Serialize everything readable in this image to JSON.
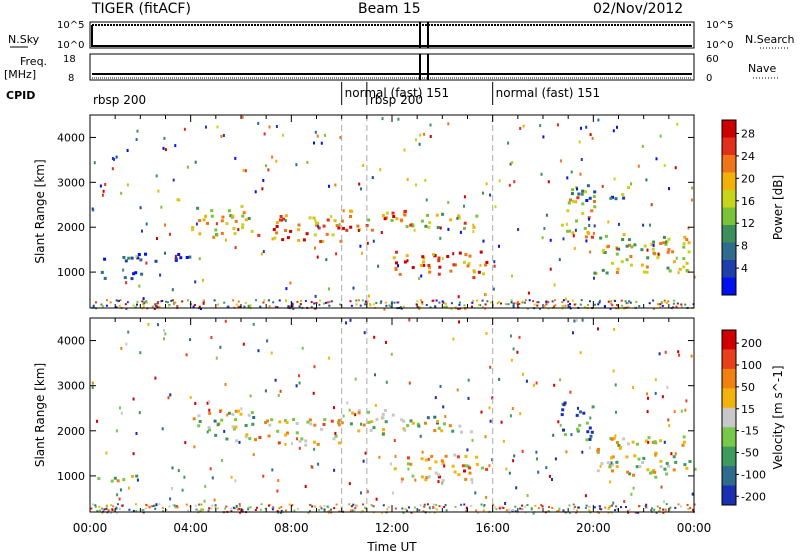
{
  "header": {
    "radar": "TIGER (fitACF)",
    "beam": "Beam 15",
    "date": "02/Nov/2012"
  },
  "aux": {
    "nsky_label": "N.Sky",
    "nsearch_label": "N.Search",
    "freq_label": "Freq.",
    "freq_unit": "[MHz]",
    "nave_label": "Nave",
    "cpid_label": "CPID",
    "noise_ticks_left": [
      "10^5",
      "10^0"
    ],
    "noise_ticks_right": [
      "10^5",
      "10^0"
    ],
    "freq_ticks": [
      "18",
      "8"
    ],
    "nave_ticks": [
      "60",
      "0"
    ],
    "cpid_segments": [
      {
        "label": "rbsp 200",
        "start_hour": 0.0
      },
      {
        "label": "normal (fast) 151",
        "start_hour": 10.0
      },
      {
        "label": "rbsp 200",
        "start_hour": 11.0
      },
      {
        "label": "normal (fast) 151",
        "start_hour": 16.0
      }
    ]
  },
  "chart_data": [
    {
      "type": "heatmap",
      "name": "power",
      "ylabel": "Slant Range [km]",
      "yticks": [
        1000,
        2000,
        3000,
        4000
      ],
      "ylim": [
        200,
        4500
      ],
      "xlim": [
        0,
        24
      ],
      "colorbar_label": "Power [dB]",
      "colorbar_ticks": [
        "4",
        "8",
        "12",
        "16",
        "20",
        "24",
        "28"
      ],
      "colorbar_colors": [
        "#0011ee",
        "#1d3faa",
        "#2e6b8c",
        "#3c8f5a",
        "#79c23a",
        "#c7d41c",
        "#f2b00c",
        "#f07418",
        "#e0301c",
        "#cc0000"
      ],
      "echo_bands": [
        {
          "t0": 0.1,
          "t1": 2.0,
          "r0": 850,
          "r1": 1050,
          "level": 0.15
        },
        {
          "t0": 0.5,
          "t1": 4.0,
          "r0": 1250,
          "r1": 1500,
          "level": 0.1
        },
        {
          "t0": 4.0,
          "t1": 6.5,
          "r0": 1800,
          "r1": 2500,
          "level": 0.55
        },
        {
          "t0": 6.5,
          "t1": 10.0,
          "r0": 1700,
          "r1": 2300,
          "level": 0.75
        },
        {
          "t0": 10.0,
          "t1": 12.5,
          "r0": 1950,
          "r1": 2500,
          "level": 0.7
        },
        {
          "t0": 12.5,
          "t1": 15.5,
          "r0": 2000,
          "r1": 2350,
          "level": 0.6
        },
        {
          "t0": 12.0,
          "t1": 15.8,
          "r0": 900,
          "r1": 1500,
          "level": 0.8
        },
        {
          "t0": 18.7,
          "t1": 20.0,
          "r0": 1800,
          "r1": 2700,
          "level": 0.6
        },
        {
          "t0": 20.0,
          "t1": 24.0,
          "r0": 1000,
          "r1": 1900,
          "level": 0.55
        },
        {
          "t0": 19.0,
          "t1": 21.5,
          "r0": 2600,
          "r1": 3000,
          "level": 0.3
        }
      ]
    },
    {
      "type": "heatmap",
      "name": "velocity",
      "ylabel": "Slant Range [km]",
      "yticks": [
        1000,
        2000,
        3000,
        4000
      ],
      "ylim": [
        200,
        4500
      ],
      "xlim": [
        0,
        24
      ],
      "xticks": [
        "00:00",
        "04:00",
        "08:00",
        "12:00",
        "16:00",
        "20:00",
        "00:00"
      ],
      "xlabel": "Time UT",
      "colorbar_label": "Velocity [m s^-1]",
      "colorbar_ticks": [
        "200",
        "100",
        "50",
        "15",
        "-15",
        "-50",
        "-100",
        "-200"
      ],
      "colorbar_colors": [
        "#1a2fb0",
        "#2e6b8c",
        "#3c9a5a",
        "#78c84a",
        "#c8c8c8",
        "#f2b40c",
        "#f08010",
        "#e8401a",
        "#d00000"
      ],
      "echo_bands": [
        {
          "t0": 0.1,
          "t1": 2.0,
          "r0": 850,
          "r1": 1050,
          "level": 0.5
        },
        {
          "t0": 4.0,
          "t1": 6.5,
          "r0": 1800,
          "r1": 2500,
          "level": 0.45
        },
        {
          "t0": 6.5,
          "t1": 10.0,
          "r0": 1700,
          "r1": 2300,
          "level": 0.6
        },
        {
          "t0": 10.0,
          "t1": 12.5,
          "r0": 1950,
          "r1": 2500,
          "level": 0.5
        },
        {
          "t0": 12.5,
          "t1": 15.5,
          "r0": 2000,
          "r1": 2350,
          "level": 0.45
        },
        {
          "t0": 12.0,
          "t1": 15.8,
          "r0": 900,
          "r1": 1500,
          "level": 0.65
        },
        {
          "t0": 18.7,
          "t1": 20.0,
          "r0": 1800,
          "r1": 2700,
          "level": 0.2
        },
        {
          "t0": 20.0,
          "t1": 24.0,
          "r0": 1000,
          "r1": 1900,
          "level": 0.5
        }
      ]
    }
  ]
}
